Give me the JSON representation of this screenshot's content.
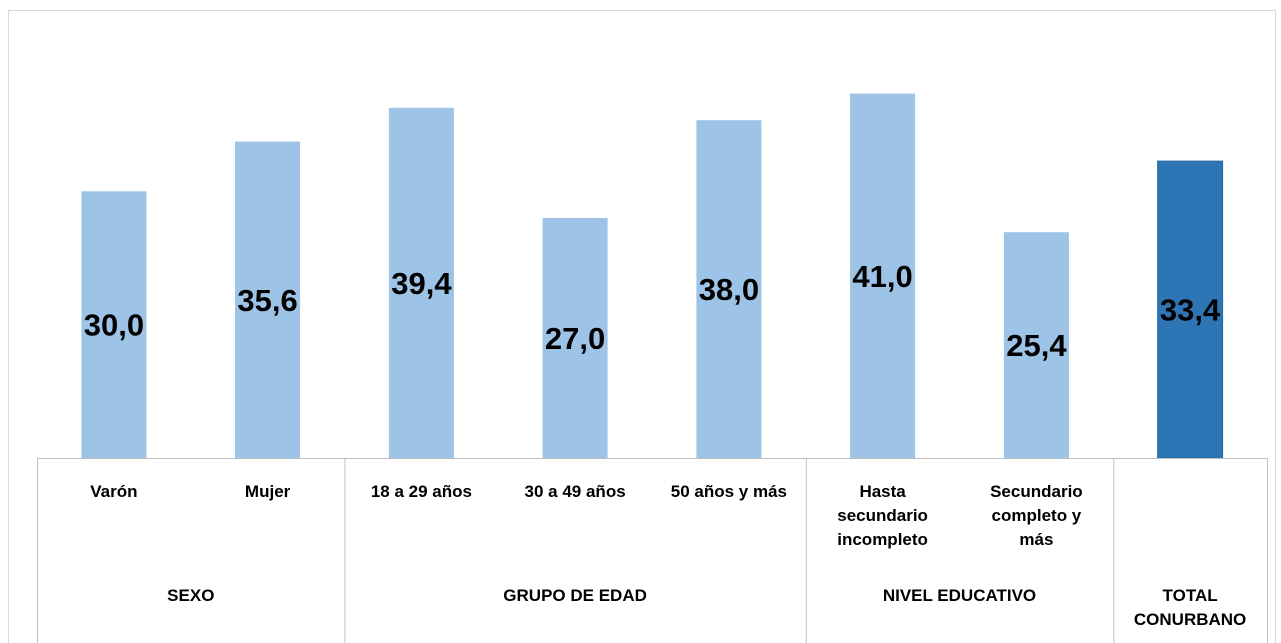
{
  "corner_fragment": "",
  "chart_data": {
    "type": "bar",
    "title": "",
    "xlabel": "",
    "ylabel": "",
    "ylim": [
      0,
      45
    ],
    "grid": false,
    "legend": "none",
    "colors": {
      "default_bar": "#9DC3E6",
      "highlight_bar": "#2E75B6",
      "border": "#d9d9d9",
      "axis": "#bfbfbf",
      "text": "#000000"
    },
    "categories": [
      [
        "Varón"
      ],
      [
        "Mujer"
      ],
      [
        "18 a 29 años"
      ],
      [
        "30 a 49 años"
      ],
      [
        "50 años y más"
      ],
      [
        "Hasta",
        "secundario",
        "incompleto"
      ],
      [
        "Secundario",
        "completo y",
        "más"
      ],
      [
        ""
      ]
    ],
    "values": [
      30.0,
      35.6,
      39.4,
      27.0,
      38.0,
      41.0,
      25.4,
      33.4
    ],
    "value_labels": [
      "30,0",
      "35,6",
      "39,4",
      "27,0",
      "38,0",
      "41,0",
      "25,4",
      "33,4"
    ],
    "highlight_index": 7,
    "groups": [
      {
        "label": [
          "SEXO"
        ],
        "start": 0,
        "end": 1
      },
      {
        "label": [
          "GRUPO DE EDAD"
        ],
        "start": 2,
        "end": 4
      },
      {
        "label": [
          "NIVEL EDUCATIVO"
        ],
        "start": 5,
        "end": 6
      },
      {
        "label": [
          "TOTAL",
          "CONURBANO"
        ],
        "start": 7,
        "end": 7
      }
    ]
  }
}
